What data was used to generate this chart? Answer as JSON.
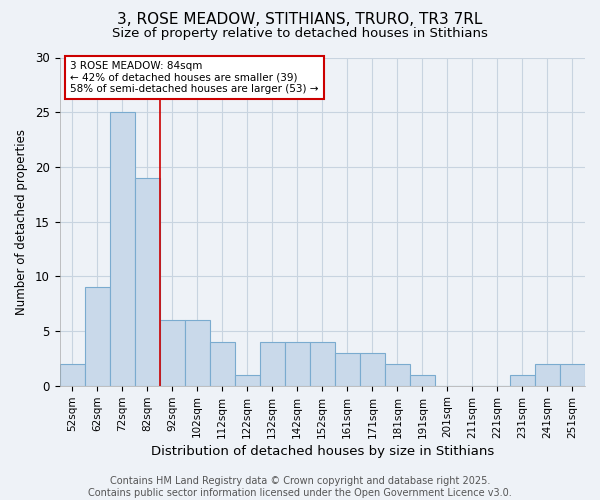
{
  "title1": "3, ROSE MEADOW, STITHIANS, TRURO, TR3 7RL",
  "title2": "Size of property relative to detached houses in Stithians",
  "xlabel": "Distribution of detached houses by size in Stithians",
  "ylabel": "Number of detached properties",
  "bin_labels": [
    "52sqm",
    "62sqm",
    "72sqm",
    "82sqm",
    "92sqm",
    "102sqm",
    "112sqm",
    "122sqm",
    "132sqm",
    "142sqm",
    "152sqm",
    "161sqm",
    "171sqm",
    "181sqm",
    "191sqm",
    "201sqm",
    "211sqm",
    "221sqm",
    "231sqm",
    "241sqm",
    "251sqm"
  ],
  "values": [
    2,
    9,
    25,
    19,
    6,
    6,
    4,
    1,
    4,
    4,
    4,
    3,
    3,
    2,
    1,
    0,
    0,
    0,
    1,
    2,
    2
  ],
  "bar_color": "#c9d9ea",
  "bar_edge_color": "#7aabcf",
  "red_line_x": 3.5,
  "annotation_text": "3 ROSE MEADOW: 84sqm\n← 42% of detached houses are smaller (39)\n58% of semi-detached houses are larger (53) →",
  "annotation_box_color": "#ffffff",
  "annotation_box_edge_color": "#cc0000",
  "red_line_color": "#cc0000",
  "ylim": [
    0,
    30
  ],
  "yticks": [
    0,
    5,
    10,
    15,
    20,
    25,
    30
  ],
  "footer_text": "Contains HM Land Registry data © Crown copyright and database right 2025.\nContains public sector information licensed under the Open Government Licence v3.0.",
  "background_color": "#eef2f7",
  "plot_background_color": "#eef2f7",
  "grid_color": "#c8d4e0",
  "title1_fontsize": 11,
  "title2_fontsize": 9.5,
  "xlabel_fontsize": 9.5,
  "ylabel_fontsize": 8.5,
  "tick_fontsize": 7.5,
  "annotation_fontsize": 7.5,
  "footer_fontsize": 7
}
